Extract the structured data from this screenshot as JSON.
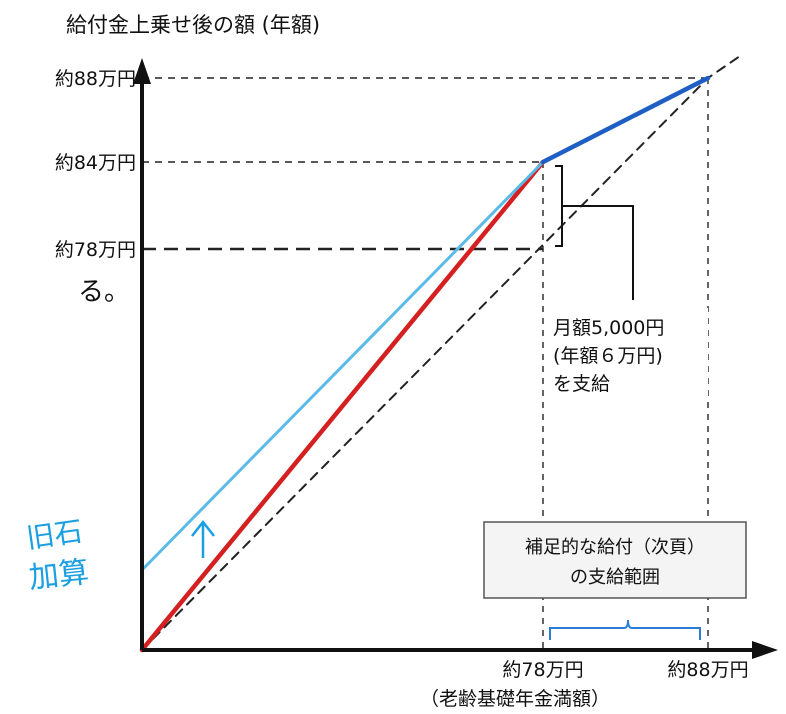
{
  "chart_data": {
    "type": "line",
    "title": "給付金上乗せ後の額 (年額)",
    "ylabel": "給付金上乗せ後の額 (年額)",
    "xlabel": "",
    "y_ticks": [
      {
        "value": 88,
        "label": "約88万円"
      },
      {
        "value": 84,
        "label": "約84万円"
      },
      {
        "value": 78,
        "label": "約78万円"
      }
    ],
    "x_ticks": [
      {
        "value": 78,
        "label": "約78万円"
      },
      {
        "value": 88,
        "label": "約88万円"
      }
    ],
    "x_subtitle": "（老齢基礎年金満額）",
    "series": [
      {
        "key": "diagonal",
        "color": "#222222",
        "dashed": true,
        "x": [
          0,
          88
        ],
        "y": [
          0,
          88
        ]
      },
      {
        "key": "red",
        "color": "#d42020",
        "dashed": false,
        "x": [
          0,
          78
        ],
        "y": [
          0,
          84
        ]
      },
      {
        "key": "lightblue",
        "color": "#5bbbe8",
        "dashed": false,
        "x": [
          0,
          78
        ],
        "y": [
          6,
          84
        ]
      },
      {
        "key": "blue",
        "color": "#1f5fc4",
        "dashed": false,
        "x": [
          78,
          88
        ],
        "y": [
          84,
          88
        ]
      }
    ],
    "annotations": {
      "bracket_text": [
        "月額5,000円",
        "(年額６万円)",
        "を支給"
      ],
      "box_text": [
        "補足的な給付（次頁）",
        "の支給範囲"
      ],
      "stray_text": "る。",
      "handwritten": [
        "旧石",
        "加算"
      ]
    },
    "colors": {
      "axis": "#111111",
      "handwriting": "#1a9fe0"
    }
  }
}
